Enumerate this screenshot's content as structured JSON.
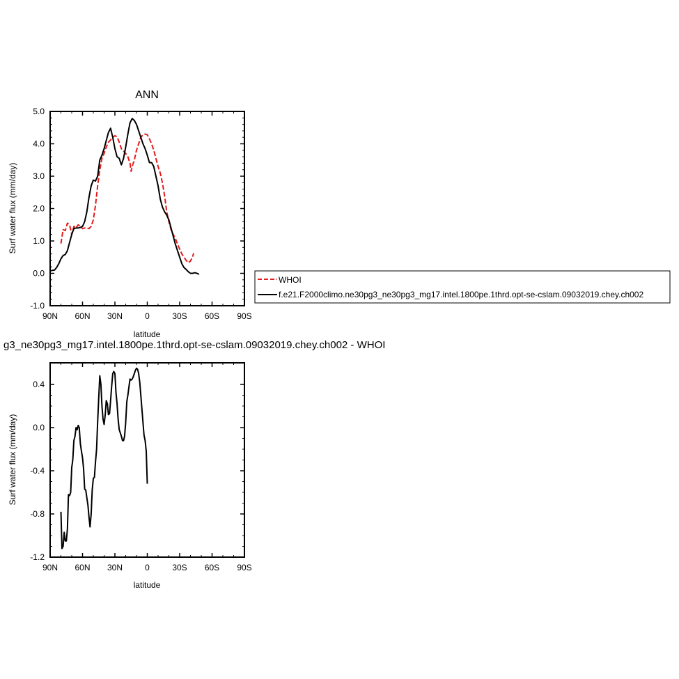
{
  "chart_data": [
    {
      "type": "line",
      "title": "ANN",
      "xlabel": "latitude",
      "ylabel": "Surf water flux (mm/day)",
      "xlim": [
        90,
        -90
      ],
      "ylim": [
        -1.0,
        5.0
      ],
      "xticks": [
        {
          "value": 90,
          "label": "90N"
        },
        {
          "value": 60,
          "label": "60N"
        },
        {
          "value": 30,
          "label": "30N"
        },
        {
          "value": 0,
          "label": "0"
        },
        {
          "value": -30,
          "label": "30S"
        },
        {
          "value": -60,
          "label": "60S"
        },
        {
          "value": -90,
          "label": "90S"
        }
      ],
      "yticks": [
        {
          "value": 5.0,
          "label": "5.0"
        },
        {
          "value": 4.0,
          "label": "4.0"
        },
        {
          "value": 3.0,
          "label": "3.0"
        },
        {
          "value": 2.0,
          "label": "2.0"
        },
        {
          "value": 1.0,
          "label": "1.0"
        },
        {
          "value": 0.0,
          "label": "0.0"
        },
        {
          "value": -1.0,
          "label": "-1.0"
        }
      ],
      "legend_position": "right",
      "series": [
        {
          "name": "WHOI",
          "color": "#e41a1c",
          "dash": "dashed",
          "points": [
            [
              80,
              0.92
            ],
            [
              78,
              1.35
            ],
            [
              76,
              1.32
            ],
            [
              74,
              1.55
            ],
            [
              72,
              1.5
            ],
            [
              70,
              1.2
            ],
            [
              68,
              1.45
            ],
            [
              66,
              1.4
            ],
            [
              64,
              1.5
            ],
            [
              62,
              1.45
            ],
            [
              60,
              1.38
            ],
            [
              58,
              1.4
            ],
            [
              56,
              1.4
            ],
            [
              54,
              1.38
            ],
            [
              52,
              1.45
            ],
            [
              50,
              1.65
            ],
            [
              48,
              2.1
            ],
            [
              46,
              2.7
            ],
            [
              44,
              3.2
            ],
            [
              42,
              3.55
            ],
            [
              40,
              3.7
            ],
            [
              38,
              3.9
            ],
            [
              36,
              4.05
            ],
            [
              34,
              4.12
            ],
            [
              32,
              4.2
            ],
            [
              30,
              4.25
            ],
            [
              28,
              4.22
            ],
            [
              26,
              4.05
            ],
            [
              24,
              3.85
            ],
            [
              22,
              3.78
            ],
            [
              20,
              3.7
            ],
            [
              18,
              3.6
            ],
            [
              16,
              3.4
            ],
            [
              15,
              3.15
            ],
            [
              14,
              3.3
            ],
            [
              12,
              3.5
            ],
            [
              10,
              3.8
            ],
            [
              8,
              4.0
            ],
            [
              6,
              4.2
            ],
            [
              4,
              4.28
            ],
            [
              2,
              4.3
            ],
            [
              0,
              4.28
            ],
            [
              -2,
              4.15
            ],
            [
              -4,
              4.0
            ],
            [
              -6,
              3.8
            ],
            [
              -8,
              3.55
            ],
            [
              -10,
              3.3
            ],
            [
              -12,
              3.1
            ],
            [
              -14,
              2.8
            ],
            [
              -16,
              2.4
            ],
            [
              -18,
              1.9
            ],
            [
              -20,
              1.6
            ],
            [
              -22,
              1.35
            ],
            [
              -24,
              1.2
            ],
            [
              -26,
              1.08
            ],
            [
              -28,
              0.9
            ],
            [
              -30,
              0.75
            ],
            [
              -32,
              0.6
            ],
            [
              -34,
              0.5
            ],
            [
              -36,
              0.4
            ],
            [
              -38,
              0.33
            ],
            [
              -40,
              0.38
            ],
            [
              -42,
              0.52
            ],
            [
              -43,
              0.62
            ]
          ]
        },
        {
          "name": "f.e21.F2000climo.ne30pg3_ne30pg3_mg17.intel.1800pe.1thrd.opt-se-cslam.09032019.chey.ch002",
          "color": "#000000",
          "dash": "solid",
          "points": [
            [
              90,
              0.08
            ],
            [
              88,
              0.09
            ],
            [
              86,
              0.1
            ],
            [
              84,
              0.18
            ],
            [
              82,
              0.3
            ],
            [
              80,
              0.45
            ],
            [
              78,
              0.55
            ],
            [
              76,
              0.58
            ],
            [
              74,
              0.7
            ],
            [
              72,
              0.95
            ],
            [
              70,
              1.2
            ],
            [
              68,
              1.38
            ],
            [
              66,
              1.4
            ],
            [
              64,
              1.4
            ],
            [
              62,
              1.42
            ],
            [
              60,
              1.45
            ],
            [
              58,
              1.6
            ],
            [
              56,
              1.9
            ],
            [
              54,
              2.35
            ],
            [
              52,
              2.7
            ],
            [
              50,
              2.88
            ],
            [
              48,
              2.85
            ],
            [
              46,
              3.0
            ],
            [
              44,
              3.5
            ],
            [
              42,
              3.65
            ],
            [
              40,
              3.85
            ],
            [
              38,
              4.1
            ],
            [
              36,
              4.35
            ],
            [
              34,
              4.48
            ],
            [
              32,
              4.2
            ],
            [
              30,
              3.85
            ],
            [
              28,
              3.6
            ],
            [
              26,
              3.55
            ],
            [
              24,
              3.35
            ],
            [
              22,
              3.55
            ],
            [
              20,
              3.9
            ],
            [
              18,
              4.3
            ],
            [
              16,
              4.65
            ],
            [
              14,
              4.78
            ],
            [
              12,
              4.72
            ],
            [
              10,
              4.6
            ],
            [
              8,
              4.4
            ],
            [
              6,
              4.2
            ],
            [
              4,
              4.0
            ],
            [
              2,
              3.85
            ],
            [
              0,
              3.65
            ],
            [
              -2,
              3.42
            ],
            [
              -4,
              3.42
            ],
            [
              -6,
              3.3
            ],
            [
              -8,
              3.0
            ],
            [
              -10,
              2.7
            ],
            [
              -12,
              2.3
            ],
            [
              -14,
              2.05
            ],
            [
              -16,
              1.9
            ],
            [
              -18,
              1.8
            ],
            [
              -20,
              1.65
            ],
            [
              -22,
              1.4
            ],
            [
              -24,
              1.15
            ],
            [
              -26,
              0.9
            ],
            [
              -28,
              0.7
            ],
            [
              -30,
              0.5
            ],
            [
              -32,
              0.3
            ],
            [
              -34,
              0.18
            ],
            [
              -36,
              0.12
            ],
            [
              -38,
              0.05
            ],
            [
              -40,
              0.0
            ],
            [
              -42,
              0.0
            ],
            [
              -44,
              0.02
            ],
            [
              -46,
              0.0
            ],
            [
              -48,
              -0.03
            ]
          ]
        }
      ]
    },
    {
      "type": "line",
      "title": "g3_ne30pg3_mg17.intel.1800pe.1thrd.opt-se-cslam.09032019.chey.ch002 - WHOI",
      "xlabel": "latitude",
      "ylabel": "Surf water flux (mm/day)",
      "xlim": [
        90,
        -90
      ],
      "ylim": [
        -1.2,
        0.6
      ],
      "xticks": [
        {
          "value": 90,
          "label": "90N"
        },
        {
          "value": 60,
          "label": "60N"
        },
        {
          "value": 30,
          "label": "30N"
        },
        {
          "value": 0,
          "label": "0"
        },
        {
          "value": -30,
          "label": "30S"
        },
        {
          "value": -60,
          "label": "60S"
        },
        {
          "value": -90,
          "label": "90S"
        }
      ],
      "yticks": [
        {
          "value": 0.4,
          "label": "0.4"
        },
        {
          "value": 0.0,
          "label": "0.0"
        },
        {
          "value": -0.4,
          "label": "-0.4"
        },
        {
          "value": -0.8,
          "label": "-0.8"
        },
        {
          "value": -1.2,
          "label": "-1.2"
        }
      ],
      "series": [
        {
          "color": "#000000",
          "dash": "solid",
          "points": [
            [
              80,
              -0.78
            ],
            [
              79,
              -1.12
            ],
            [
              78,
              -1.1
            ],
            [
              77,
              -0.97
            ],
            [
              76,
              -1.05
            ],
            [
              75,
              -1.05
            ],
            [
              74,
              -0.94
            ],
            [
              73,
              -0.62
            ],
            [
              72,
              -0.63
            ],
            [
              71,
              -0.6
            ],
            [
              70,
              -0.37
            ],
            [
              69,
              -0.3
            ],
            [
              68,
              -0.12
            ],
            [
              67,
              -0.08
            ],
            [
              66,
              0.0
            ],
            [
              65,
              -0.02
            ],
            [
              64,
              0.02
            ],
            [
              63,
              0.0
            ],
            [
              62,
              -0.15
            ],
            [
              61,
              -0.22
            ],
            [
              60,
              -0.28
            ],
            [
              59,
              -0.38
            ],
            [
              58,
              -0.57
            ],
            [
              57,
              -0.58
            ],
            [
              56,
              -0.65
            ],
            [
              55,
              -0.72
            ],
            [
              54,
              -0.83
            ],
            [
              53,
              -0.92
            ],
            [
              52,
              -0.8
            ],
            [
              51,
              -0.58
            ],
            [
              50,
              -0.47
            ],
            [
              49,
              -0.46
            ],
            [
              48,
              -0.32
            ],
            [
              47,
              -0.2
            ],
            [
              46,
              0.05
            ],
            [
              45,
              0.28
            ],
            [
              44,
              0.48
            ],
            [
              43,
              0.4
            ],
            [
              42,
              0.2
            ],
            [
              41,
              0.08
            ],
            [
              40,
              0.03
            ],
            [
              39,
              0.12
            ],
            [
              38,
              0.25
            ],
            [
              37,
              0.22
            ],
            [
              36,
              0.12
            ],
            [
              35,
              0.13
            ],
            [
              34,
              0.25
            ],
            [
              33,
              0.38
            ],
            [
              32,
              0.5
            ],
            [
              31,
              0.52
            ],
            [
              30,
              0.5
            ],
            [
              29,
              0.32
            ],
            [
              28,
              0.22
            ],
            [
              27,
              0.08
            ],
            [
              26,
              -0.02
            ],
            [
              25,
              -0.05
            ],
            [
              24,
              -0.08
            ],
            [
              23,
              -0.12
            ],
            [
              22,
              -0.12
            ],
            [
              21,
              -0.08
            ],
            [
              20,
              0.05
            ],
            [
              19,
              0.24
            ],
            [
              18,
              0.3
            ],
            [
              17,
              0.38
            ],
            [
              16,
              0.45
            ],
            [
              15,
              0.44
            ],
            [
              14,
              0.45
            ],
            [
              13,
              0.47
            ],
            [
              12,
              0.5
            ],
            [
              11,
              0.53
            ],
            [
              10,
              0.55
            ],
            [
              9,
              0.54
            ],
            [
              8,
              0.5
            ],
            [
              7,
              0.42
            ],
            [
              6,
              0.3
            ],
            [
              5,
              0.17
            ],
            [
              4,
              0.05
            ],
            [
              3,
              -0.07
            ],
            [
              2,
              -0.12
            ],
            [
              1,
              -0.22
            ],
            [
              0,
              -0.52
            ]
          ]
        }
      ]
    }
  ]
}
